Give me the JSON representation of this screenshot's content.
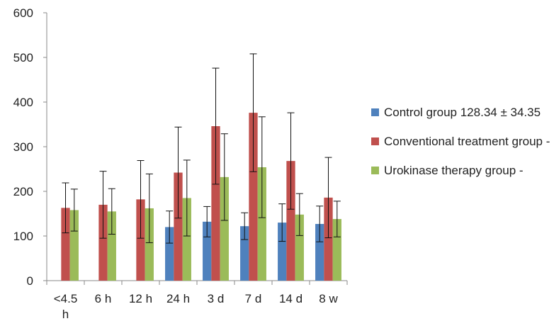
{
  "chart_data": {
    "type": "bar",
    "categories": [
      "<4.5 h",
      "6 h",
      "12 h",
      "24 h",
      "3 d",
      "7 d",
      "14 d",
      "8 w"
    ],
    "ylim": [
      0,
      600
    ],
    "yticks": [
      0,
      100,
      200,
      300,
      400,
      500,
      600
    ],
    "grid": false,
    "legend_position": "right",
    "error_bars": true,
    "series": [
      {
        "name": "Control group 128.34 ± 34.35",
        "color": "#4f81bd",
        "values": [
          null,
          null,
          null,
          120,
          132,
          122,
          130,
          127
        ],
        "errors": [
          null,
          null,
          null,
          36,
          34,
          30,
          42,
          40
        ]
      },
      {
        "name": "Conventional treatment group -",
        "color": "#c0504d",
        "values": [
          163,
          170,
          182,
          242,
          346,
          376,
          268,
          186
        ],
        "errors": [
          56,
          75,
          87,
          102,
          130,
          132,
          108,
          90
        ]
      },
      {
        "name": "Urokinase therapy group -",
        "color": "#9bbb59",
        "values": [
          158,
          155,
          162,
          185,
          232,
          254,
          148,
          138
        ],
        "errors": [
          47,
          51,
          77,
          85,
          97,
          113,
          47,
          40
        ]
      }
    ]
  }
}
